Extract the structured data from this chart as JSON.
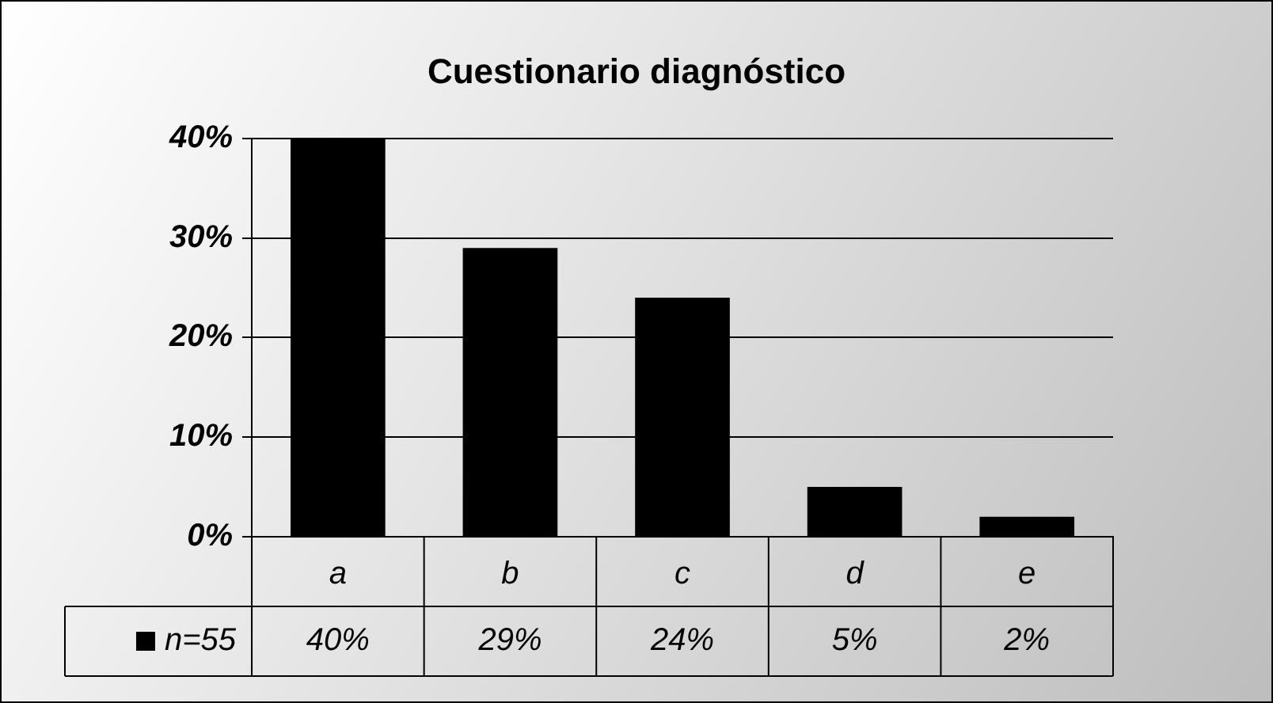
{
  "chart_data": {
    "type": "bar",
    "title": "Cuestionario diagnóstico",
    "categories": [
      "a",
      "b",
      "c",
      "d",
      "e"
    ],
    "series": [
      {
        "name": "n=55",
        "color": "#000000",
        "values": [
          40,
          29,
          24,
          5,
          2
        ],
        "value_labels": [
          "40%",
          "29%",
          "24%",
          "5%",
          "2%"
        ]
      }
    ],
    "ylim": [
      0,
      40
    ],
    "yticks": [
      {
        "value": 0,
        "label": "0%"
      },
      {
        "value": 10,
        "label": "10%"
      },
      {
        "value": 20,
        "label": "20%"
      },
      {
        "value": 30,
        "label": "30%"
      },
      {
        "value": 40,
        "label": "40%"
      }
    ],
    "grid": "y",
    "legend": "bottom left"
  }
}
